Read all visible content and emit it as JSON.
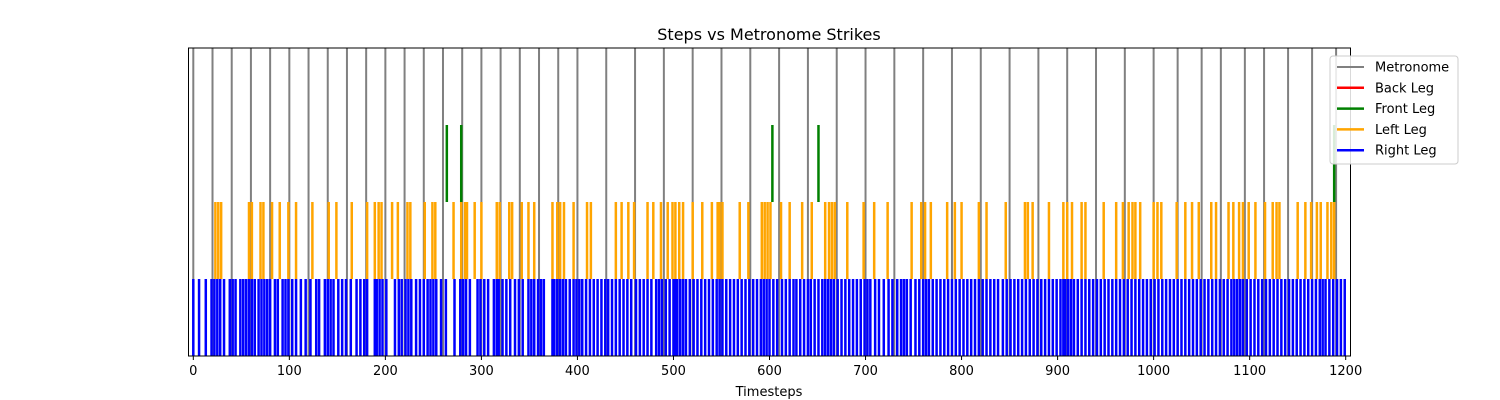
{
  "chart_data": {
    "type": "event-raster",
    "title": "Steps vs Metronome Strikes",
    "xlabel": "Timesteps",
    "ylabel": "",
    "xlim": [
      -5,
      1205
    ],
    "ylim": [
      0,
      4
    ],
    "x_ticks": [
      0,
      100,
      200,
      300,
      400,
      500,
      600,
      700,
      800,
      900,
      1000,
      1100,
      1200
    ],
    "grid": false,
    "legend_position": "upper-right",
    "series": [
      {
        "name": "Metronome",
        "color": "#808080",
        "y_range": [
          0,
          4
        ],
        "x": [
          0,
          20,
          40,
          60,
          80,
          100,
          120,
          140,
          160,
          180,
          200,
          220,
          240,
          260,
          280,
          300,
          320,
          340,
          360,
          380,
          400,
          430,
          460,
          490,
          520,
          550,
          580,
          610,
          640,
          670,
          700,
          730,
          760,
          790,
          820,
          850,
          880,
          910,
          940,
          970,
          1000,
          1025,
          1050,
          1070,
          1095,
          1115,
          1140,
          1165,
          1190
        ]
      },
      {
        "name": "Back Leg",
        "color": "#ff0000",
        "y_range": [
          3,
          4
        ],
        "x": []
      },
      {
        "name": "Front Leg",
        "color": "#008000",
        "y_range": [
          2,
          3
        ],
        "x": [
          264,
          279,
          603,
          651,
          1188
        ]
      },
      {
        "name": "Left Leg",
        "color": "#ffa500",
        "y_range": [
          1,
          2
        ],
        "x": [
          23,
          26,
          29,
          58,
          61,
          70,
          73,
          82,
          90,
          99,
          107,
          124,
          141,
          149,
          165,
          181,
          189,
          193,
          196,
          207,
          213,
          223,
          226,
          241,
          249,
          252,
          271,
          279,
          283,
          285,
          293,
          300,
          316,
          319,
          329,
          332,
          342,
          349,
          355,
          374,
          379,
          382,
          386,
          396,
          410,
          414,
          440,
          446,
          453,
          459,
          473,
          479,
          487,
          494,
          499,
          502,
          506,
          510,
          520,
          530,
          540,
          546,
          548,
          551,
          569,
          578,
          592,
          595,
          598,
          601,
          612,
          621,
          634,
          644,
          658,
          662,
          665,
          668,
          681,
          698,
          709,
          723,
          748,
          758,
          762,
          768,
          785,
          793,
          800,
          818,
          826,
          846,
          866,
          869,
          874,
          891,
          906,
          910,
          915,
          925,
          929,
          948,
          961,
          968,
          974,
          978,
          981,
          986,
          1000,
          1004,
          1008,
          1024,
          1033,
          1040,
          1047,
          1060,
          1065,
          1078,
          1083,
          1089,
          1093,
          1099,
          1106,
          1116,
          1124,
          1128,
          1131,
          1150,
          1158,
          1164,
          1170,
          1174,
          1181,
          1185,
          1188
        ]
      },
      {
        "name": "Right Leg",
        "color": "#0000ff",
        "y_range": [
          0,
          1
        ],
        "x": [
          0,
          6,
          13,
          19,
          22,
          25,
          28,
          32,
          38,
          41,
          44,
          49,
          52,
          55,
          58,
          61,
          64,
          68,
          71,
          74,
          77,
          80,
          85,
          88,
          93,
          96,
          99,
          103,
          107,
          112,
          117,
          122,
          128,
          131,
          137,
          140,
          143,
          146,
          151,
          155,
          159,
          164,
          170,
          174,
          178,
          181,
          189,
          191,
          194,
          197,
          201,
          210,
          214,
          217,
          221,
          224,
          227,
          232,
          236,
          240,
          244,
          247,
          250,
          253,
          258,
          263,
          272,
          278,
          281,
          284,
          288,
          296,
          299,
          303,
          307,
          313,
          316,
          318,
          322,
          326,
          330,
          335,
          339,
          343,
          349,
          352,
          355,
          359,
          362,
          365,
          374,
          376,
          379,
          382,
          385,
          388,
          392,
          396,
          399,
          402,
          405,
          409,
          413,
          417,
          421,
          425,
          429,
          432,
          436,
          440,
          444,
          448,
          452,
          456,
          461,
          465,
          469,
          473,
          477,
          482,
          485,
          488,
          492,
          496,
          500,
          502,
          504,
          507,
          510,
          513,
          517,
          521,
          525,
          529,
          533,
          537,
          541,
          545,
          548,
          551,
          555,
          559,
          563,
          567,
          571,
          575,
          579,
          583,
          587,
          591,
          594,
          597,
          600,
          604,
          608,
          613,
          617,
          621,
          625,
          628,
          632,
          636,
          640,
          643,
          647,
          651,
          655,
          658,
          661,
          664,
          667,
          671,
          675,
          679,
          683,
          687,
          691,
          695,
          699,
          702,
          705,
          710,
          714,
          719,
          724,
          728,
          733,
          737,
          740,
          743,
          747,
          752,
          756,
          760,
          763,
          766,
          770,
          774,
          778,
          782,
          786,
          790,
          794,
          798,
          802,
          806,
          810,
          814,
          818,
          822,
          826,
          830,
          834,
          838,
          843,
          847,
          851,
          855,
          859,
          863,
          867,
          871,
          875,
          879,
          883,
          887,
          891,
          895,
          899,
          903,
          906,
          908,
          911,
          914,
          917,
          921,
          925,
          929,
          933,
          937,
          941,
          945,
          949,
          953,
          957,
          961,
          965,
          969,
          973,
          977,
          981,
          985,
          989,
          993,
          997,
          1001,
          1005,
          1009,
          1013,
          1017,
          1021,
          1025,
          1029,
          1033,
          1037,
          1041,
          1045,
          1049,
          1053,
          1057,
          1061,
          1065,
          1069,
          1073,
          1077,
          1081,
          1084,
          1087,
          1090,
          1093,
          1097,
          1101,
          1105,
          1109,
          1113,
          1117,
          1121,
          1125,
          1129,
          1133,
          1137,
          1141,
          1145,
          1149,
          1153,
          1157,
          1161,
          1165,
          1169,
          1173,
          1176,
          1179,
          1183,
          1187,
          1191,
          1195,
          1199
        ]
      }
    ]
  }
}
